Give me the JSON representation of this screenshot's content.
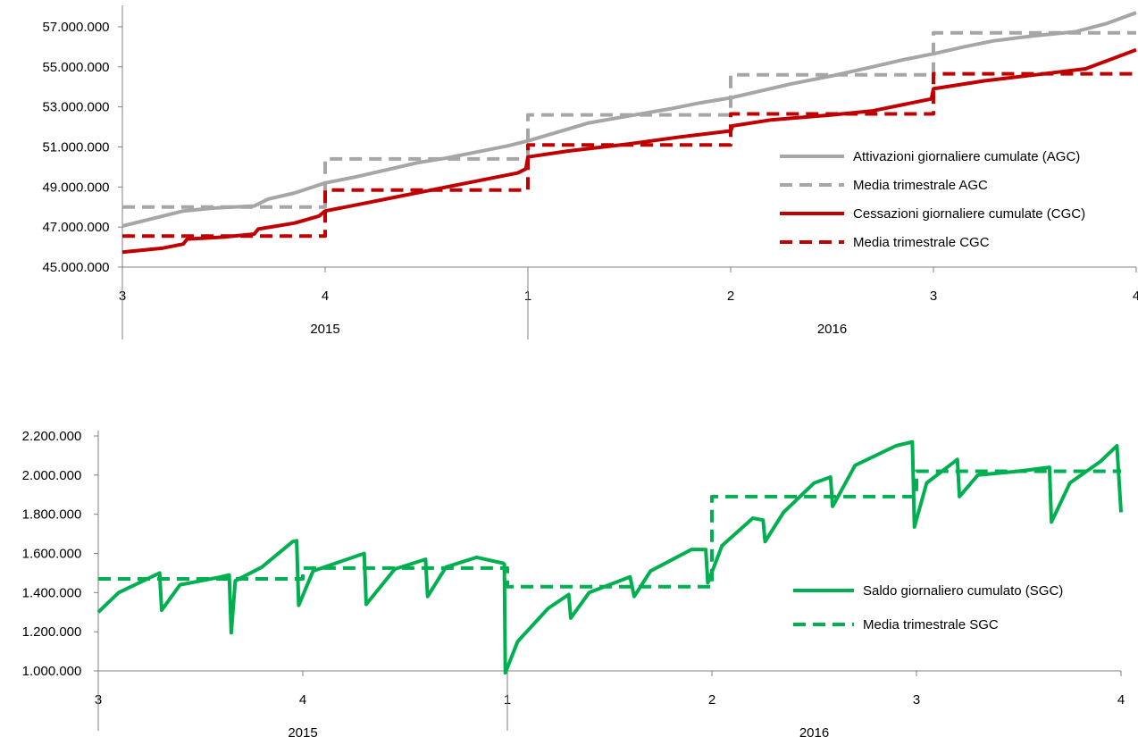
{
  "chart_data": [
    {
      "type": "line",
      "title": "",
      "ylim": [
        45000000,
        57800000
      ],
      "yticks": [
        "45.000.000",
        "47.000.000",
        "49.000.000",
        "51.000.000",
        "53.000.000",
        "55.000.000",
        "57.000.000"
      ],
      "ytick_values": [
        45000000,
        47000000,
        49000000,
        51000000,
        53000000,
        55000000,
        57000000
      ],
      "x_quarters": [
        "3",
        "4",
        "1",
        "2",
        "3",
        "4"
      ],
      "x_years": [
        "2015",
        "2016"
      ],
      "grid": false,
      "legend_position": "right",
      "series": [
        {
          "name": "Attivazioni giornaliere cumulate (AGC)",
          "style": "solid",
          "color": "#a6a6a6",
          "points": [
            [
              0,
              47050000
            ],
            [
              0.1,
              47300000
            ],
            [
              0.2,
              47550000
            ],
            [
              0.3,
              47800000
            ],
            [
              0.45,
              47950000
            ],
            [
              0.65,
              48050000
            ],
            [
              0.72,
              48400000
            ],
            [
              0.85,
              48700000
            ],
            [
              1.0,
              49200000
            ],
            [
              1.15,
              49500000
            ],
            [
              1.3,
              49850000
            ],
            [
              1.45,
              50200000
            ],
            [
              1.6,
              50450000
            ],
            [
              1.75,
              50750000
            ],
            [
              1.9,
              51050000
            ],
            [
              2.0,
              51300000
            ],
            [
              2.15,
              51750000
            ],
            [
              2.3,
              52200000
            ],
            [
              2.5,
              52550000
            ],
            [
              2.7,
              52900000
            ],
            [
              2.85,
              53200000
            ],
            [
              3.0,
              53450000
            ],
            [
              3.15,
              53800000
            ],
            [
              3.3,
              54150000
            ],
            [
              3.5,
              54550000
            ],
            [
              3.7,
              55000000
            ],
            [
              3.85,
              55350000
            ],
            [
              4.0,
              55650000
            ],
            [
              4.15,
              56000000
            ],
            [
              4.3,
              56300000
            ],
            [
              4.5,
              56550000
            ],
            [
              4.7,
              56750000
            ],
            [
              4.85,
              57150000
            ],
            [
              5.0,
              57700000
            ]
          ]
        },
        {
          "name": "Media trimestrale AGC",
          "style": "dashed",
          "color": "#a6a6a6",
          "points": [
            [
              0,
              48000000
            ],
            [
              1.0,
              48000000
            ],
            [
              1.0,
              50400000
            ],
            [
              2.0,
              50400000
            ],
            [
              2.0,
              52600000
            ],
            [
              3.0,
              52600000
            ],
            [
              3.0,
              54600000
            ],
            [
              4.0,
              54600000
            ],
            [
              4.0,
              56700000
            ],
            [
              5.0,
              56700000
            ]
          ]
        },
        {
          "name": "Cessazioni giornaliere cumulate (CGC)",
          "style": "solid",
          "color": "#c00000",
          "points": [
            [
              0,
              45750000
            ],
            [
              0.2,
              45950000
            ],
            [
              0.3,
              46150000
            ],
            [
              0.32,
              46400000
            ],
            [
              0.5,
              46500000
            ],
            [
              0.65,
              46650000
            ],
            [
              0.67,
              46900000
            ],
            [
              0.85,
              47200000
            ],
            [
              0.97,
              47550000
            ],
            [
              1.0,
              47800000
            ],
            [
              1.2,
              48200000
            ],
            [
              1.35,
              48500000
            ],
            [
              1.5,
              48800000
            ],
            [
              1.65,
              49100000
            ],
            [
              1.8,
              49400000
            ],
            [
              1.95,
              49700000
            ],
            [
              1.99,
              49900000
            ],
            [
              2.0,
              50500000
            ],
            [
              2.2,
              50800000
            ],
            [
              2.5,
              51150000
            ],
            [
              2.75,
              51500000
            ],
            [
              3.0,
              51800000
            ],
            [
              3.01,
              52050000
            ],
            [
              3.2,
              52350000
            ],
            [
              3.5,
              52600000
            ],
            [
              3.7,
              52800000
            ],
            [
              3.99,
              53400000
            ],
            [
              4.0,
              53900000
            ],
            [
              4.25,
              54300000
            ],
            [
              4.5,
              54600000
            ],
            [
              4.75,
              54900000
            ],
            [
              5.0,
              55850000
            ]
          ]
        },
        {
          "name": "Media trimestrale CGC",
          "style": "dashed",
          "color": "#c00000",
          "points": [
            [
              0,
              46550000
            ],
            [
              1.0,
              46550000
            ],
            [
              1.0,
              48850000
            ],
            [
              2.0,
              48850000
            ],
            [
              2.0,
              51100000
            ],
            [
              3.0,
              51100000
            ],
            [
              3.0,
              52650000
            ],
            [
              4.0,
              52650000
            ],
            [
              4.0,
              54650000
            ],
            [
              5.0,
              54650000
            ]
          ]
        }
      ]
    },
    {
      "type": "line",
      "title": "",
      "ylim": [
        1000000,
        2200000
      ],
      "yticks": [
        "1.000.000",
        "1.200.000",
        "1.400.000",
        "1.600.000",
        "1.800.000",
        "2.000.000",
        "2.200.000"
      ],
      "ytick_values": [
        1000000,
        1200000,
        1400000,
        1600000,
        1800000,
        2000000,
        2200000
      ],
      "x_quarters": [
        "3",
        "4",
        "1",
        "2",
        "3",
        "4"
      ],
      "x_years": [
        "2015",
        "2016"
      ],
      "grid": false,
      "legend_position": "right",
      "series": [
        {
          "name": "Saldo giornaliero cumulato (SGC)",
          "style": "solid",
          "color": "#00b050",
          "points": [
            [
              0,
              1300000
            ],
            [
              0.1,
              1400000
            ],
            [
              0.3,
              1500000
            ],
            [
              0.31,
              1310000
            ],
            [
              0.4,
              1440000
            ],
            [
              0.6,
              1480000
            ],
            [
              0.64,
              1490000
            ],
            [
              0.65,
              1195000
            ],
            [
              0.67,
              1460000
            ],
            [
              0.8,
              1530000
            ],
            [
              0.95,
              1660000
            ],
            [
              0.97,
              1665000
            ],
            [
              0.98,
              1335000
            ],
            [
              1.05,
              1510000
            ],
            [
              1.3,
              1600000
            ],
            [
              1.31,
              1340000
            ],
            [
              1.45,
              1520000
            ],
            [
              1.6,
              1570000
            ],
            [
              1.61,
              1380000
            ],
            [
              1.7,
              1530000
            ],
            [
              1.85,
              1580000
            ],
            [
              1.98,
              1550000
            ],
            [
              1.985,
              1545000
            ],
            [
              1.99,
              990000
            ],
            [
              2.05,
              1150000
            ],
            [
              2.2,
              1320000
            ],
            [
              2.3,
              1390000
            ],
            [
              2.31,
              1270000
            ],
            [
              2.4,
              1400000
            ],
            [
              2.6,
              1480000
            ],
            [
              2.62,
              1380000
            ],
            [
              2.7,
              1510000
            ],
            [
              2.9,
              1620000
            ],
            [
              2.97,
              1620000
            ],
            [
              2.98,
              1450000
            ],
            [
              3.05,
              1640000
            ],
            [
              3.2,
              1780000
            ],
            [
              3.25,
              1770000
            ],
            [
              3.26,
              1660000
            ],
            [
              3.35,
              1810000
            ],
            [
              3.5,
              1960000
            ],
            [
              3.58,
              1990000
            ],
            [
              3.59,
              1840000
            ],
            [
              3.7,
              2050000
            ],
            [
              3.9,
              2150000
            ],
            [
              3.98,
              2170000
            ],
            [
              3.99,
              1735000
            ],
            [
              4.05,
              1960000
            ],
            [
              4.2,
              2080000
            ],
            [
              4.21,
              1890000
            ],
            [
              4.3,
              2000000
            ],
            [
              4.5,
              2020000
            ],
            [
              4.65,
              2040000
            ],
            [
              4.66,
              1760000
            ],
            [
              4.75,
              1960000
            ],
            [
              4.9,
              2070000
            ],
            [
              4.98,
              2150000
            ],
            [
              5.0,
              1810000
            ]
          ]
        },
        {
          "name": "Media trimestrale SGC",
          "style": "dashed",
          "color": "#00b050",
          "points": [
            [
              0,
              1470000
            ],
            [
              1.0,
              1470000
            ],
            [
              1.0,
              1525000
            ],
            [
              2.0,
              1525000
            ],
            [
              2.0,
              1430000
            ],
            [
              3.0,
              1430000
            ],
            [
              3.0,
              1890000
            ],
            [
              4.0,
              1890000
            ],
            [
              4.0,
              2020000
            ],
            [
              5.0,
              2020000
            ]
          ]
        }
      ]
    }
  ]
}
